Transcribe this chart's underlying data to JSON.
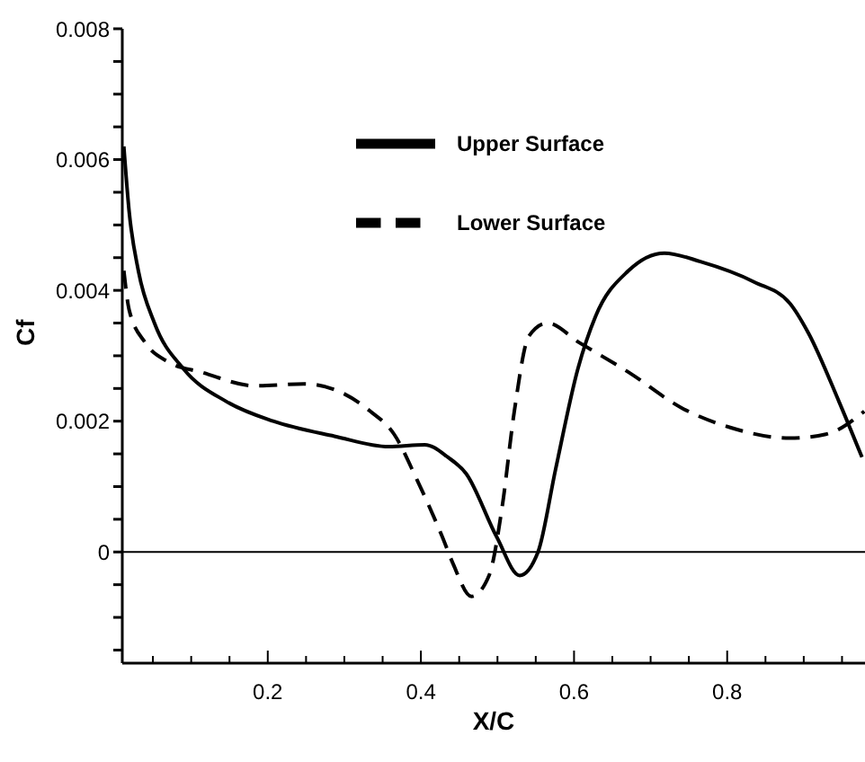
{
  "chart_data": {
    "type": "line",
    "xlabel": "X/C",
    "ylabel": "Cf",
    "xlim": [
      0.01,
      0.98
    ],
    "ylim": [
      -0.0017,
      0.008
    ],
    "xticks": [
      {
        "value": 0.05,
        "label": null
      },
      {
        "value": 0.1,
        "label": null
      },
      {
        "value": 0.15,
        "label": null
      },
      0.2,
      {
        "value": 0.25,
        "label": null
      },
      {
        "value": 0.3,
        "label": null
      },
      {
        "value": 0.35,
        "label": null
      },
      0.4,
      {
        "value": 0.45,
        "label": null
      },
      {
        "value": 0.5,
        "label": null
      },
      {
        "value": 0.55,
        "label": null
      },
      0.6,
      {
        "value": 0.65,
        "label": null
      },
      {
        "value": 0.7,
        "label": null
      },
      {
        "value": 0.75,
        "label": null
      },
      0.8,
      {
        "value": 0.85,
        "label": null
      },
      {
        "value": 0.9,
        "label": null
      },
      {
        "value": 0.95,
        "label": null
      }
    ],
    "yticks": [
      {
        "value": -0.0015,
        "label": null
      },
      {
        "value": -0.001,
        "label": null
      },
      {
        "value": -0.0005,
        "label": null
      },
      0,
      {
        "value": 0.0005,
        "label": null
      },
      {
        "value": 0.001,
        "label": null
      },
      {
        "value": 0.0015,
        "label": null
      },
      0.002,
      {
        "value": 0.0025,
        "label": null
      },
      {
        "value": 0.003,
        "label": null
      },
      {
        "value": 0.0035,
        "label": null
      },
      0.004,
      {
        "value": 0.0045,
        "label": null
      },
      {
        "value": 0.005,
        "label": null
      },
      {
        "value": 0.0055,
        "label": null
      },
      0.006,
      {
        "value": 0.0065,
        "label": null
      },
      {
        "value": 0.007,
        "label": null
      },
      {
        "value": 0.0075,
        "label": null
      },
      0.008
    ],
    "grid": false,
    "legend": "top",
    "marker": "none",
    "ref_lines": [
      {
        "axis": "y",
        "value": 0,
        "color": "#000000"
      }
    ],
    "series": [
      {
        "name": "Upper Surface",
        "color": "#000000",
        "line_style": "solid",
        "x": [
          0.012,
          0.019,
          0.031,
          0.052,
          0.09,
          0.146,
          0.207,
          0.287,
          0.358,
          0.405,
          0.435,
          0.459,
          0.499,
          0.529,
          0.553,
          0.576,
          0.605,
          0.628,
          0.671,
          0.718,
          0.765,
          0.835,
          0.882,
          0.906,
          0.946,
          0.976
        ],
        "values": [
          0.0062,
          0.0052,
          0.0043,
          0.0035,
          0.0028,
          0.0023,
          0.002,
          0.00177,
          0.00161,
          0.00164,
          0.00145,
          0.0012,
          0.00023,
          -0.00036,
          0,
          0.00127,
          0.0028,
          0.0036,
          0.0043,
          0.00457,
          0.00444,
          0.00413,
          0.0038,
          0.00335,
          0.0023,
          0.00145
        ]
      },
      {
        "name": "Lower Surface",
        "color": "#000000",
        "line_style": "dashed",
        "x": [
          0.012,
          0.019,
          0.04,
          0.071,
          0.113,
          0.184,
          0.247,
          0.294,
          0.334,
          0.365,
          0.395,
          0.428,
          0.442,
          0.466,
          0.489,
          0.506,
          0.522,
          0.541,
          0.565,
          0.607,
          0.671,
          0.741,
          0.805,
          0.882,
          0.929,
          0.979
        ],
        "values": [
          0.0043,
          0.0037,
          0.0032,
          0.0029,
          0.00275,
          0.00254,
          0.00257,
          0.00245,
          0.00215,
          0.0018,
          0.0011,
          0.00023,
          -0.00018,
          -0.00068,
          -0.00036,
          0.00068,
          0.00215,
          0.0033,
          0.0035,
          0.0032,
          0.00275,
          0.0022,
          0.0019,
          0.00174,
          0.0018,
          0.00215
        ]
      }
    ]
  }
}
